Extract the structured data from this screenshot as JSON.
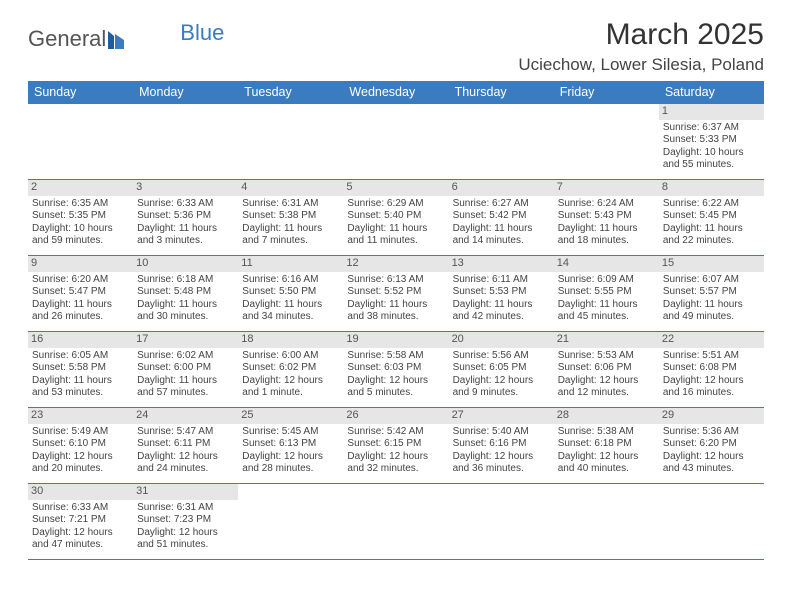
{
  "logo": {
    "text_general": "General",
    "text_blue": "Blue"
  },
  "title": "March 2025",
  "location": "Uciechow, Lower Silesia, Poland",
  "colors": {
    "header_bg": "#3b7bbf",
    "header_text": "#ffffff",
    "daynum_bg": "#e6e6e6",
    "cell_border": "#3b7bbf",
    "body_text": "#444444"
  },
  "weekdays": [
    "Sunday",
    "Monday",
    "Tuesday",
    "Wednesday",
    "Thursday",
    "Friday",
    "Saturday"
  ],
  "weeks": [
    [
      {
        "day": "",
        "sunrise": "",
        "sunset": "",
        "daylight1": "",
        "daylight2": ""
      },
      {
        "day": "",
        "sunrise": "",
        "sunset": "",
        "daylight1": "",
        "daylight2": ""
      },
      {
        "day": "",
        "sunrise": "",
        "sunset": "",
        "daylight1": "",
        "daylight2": ""
      },
      {
        "day": "",
        "sunrise": "",
        "sunset": "",
        "daylight1": "",
        "daylight2": ""
      },
      {
        "day": "",
        "sunrise": "",
        "sunset": "",
        "daylight1": "",
        "daylight2": ""
      },
      {
        "day": "",
        "sunrise": "",
        "sunset": "",
        "daylight1": "",
        "daylight2": ""
      },
      {
        "day": "1",
        "sunrise": "Sunrise: 6:37 AM",
        "sunset": "Sunset: 5:33 PM",
        "daylight1": "Daylight: 10 hours",
        "daylight2": "and 55 minutes."
      }
    ],
    [
      {
        "day": "2",
        "sunrise": "Sunrise: 6:35 AM",
        "sunset": "Sunset: 5:35 PM",
        "daylight1": "Daylight: 10 hours",
        "daylight2": "and 59 minutes."
      },
      {
        "day": "3",
        "sunrise": "Sunrise: 6:33 AM",
        "sunset": "Sunset: 5:36 PM",
        "daylight1": "Daylight: 11 hours",
        "daylight2": "and 3 minutes."
      },
      {
        "day": "4",
        "sunrise": "Sunrise: 6:31 AM",
        "sunset": "Sunset: 5:38 PM",
        "daylight1": "Daylight: 11 hours",
        "daylight2": "and 7 minutes."
      },
      {
        "day": "5",
        "sunrise": "Sunrise: 6:29 AM",
        "sunset": "Sunset: 5:40 PM",
        "daylight1": "Daylight: 11 hours",
        "daylight2": "and 11 minutes."
      },
      {
        "day": "6",
        "sunrise": "Sunrise: 6:27 AM",
        "sunset": "Sunset: 5:42 PM",
        "daylight1": "Daylight: 11 hours",
        "daylight2": "and 14 minutes."
      },
      {
        "day": "7",
        "sunrise": "Sunrise: 6:24 AM",
        "sunset": "Sunset: 5:43 PM",
        "daylight1": "Daylight: 11 hours",
        "daylight2": "and 18 minutes."
      },
      {
        "day": "8",
        "sunrise": "Sunrise: 6:22 AM",
        "sunset": "Sunset: 5:45 PM",
        "daylight1": "Daylight: 11 hours",
        "daylight2": "and 22 minutes."
      }
    ],
    [
      {
        "day": "9",
        "sunrise": "Sunrise: 6:20 AM",
        "sunset": "Sunset: 5:47 PM",
        "daylight1": "Daylight: 11 hours",
        "daylight2": "and 26 minutes."
      },
      {
        "day": "10",
        "sunrise": "Sunrise: 6:18 AM",
        "sunset": "Sunset: 5:48 PM",
        "daylight1": "Daylight: 11 hours",
        "daylight2": "and 30 minutes."
      },
      {
        "day": "11",
        "sunrise": "Sunrise: 6:16 AM",
        "sunset": "Sunset: 5:50 PM",
        "daylight1": "Daylight: 11 hours",
        "daylight2": "and 34 minutes."
      },
      {
        "day": "12",
        "sunrise": "Sunrise: 6:13 AM",
        "sunset": "Sunset: 5:52 PM",
        "daylight1": "Daylight: 11 hours",
        "daylight2": "and 38 minutes."
      },
      {
        "day": "13",
        "sunrise": "Sunrise: 6:11 AM",
        "sunset": "Sunset: 5:53 PM",
        "daylight1": "Daylight: 11 hours",
        "daylight2": "and 42 minutes."
      },
      {
        "day": "14",
        "sunrise": "Sunrise: 6:09 AM",
        "sunset": "Sunset: 5:55 PM",
        "daylight1": "Daylight: 11 hours",
        "daylight2": "and 45 minutes."
      },
      {
        "day": "15",
        "sunrise": "Sunrise: 6:07 AM",
        "sunset": "Sunset: 5:57 PM",
        "daylight1": "Daylight: 11 hours",
        "daylight2": "and 49 minutes."
      }
    ],
    [
      {
        "day": "16",
        "sunrise": "Sunrise: 6:05 AM",
        "sunset": "Sunset: 5:58 PM",
        "daylight1": "Daylight: 11 hours",
        "daylight2": "and 53 minutes."
      },
      {
        "day": "17",
        "sunrise": "Sunrise: 6:02 AM",
        "sunset": "Sunset: 6:00 PM",
        "daylight1": "Daylight: 11 hours",
        "daylight2": "and 57 minutes."
      },
      {
        "day": "18",
        "sunrise": "Sunrise: 6:00 AM",
        "sunset": "Sunset: 6:02 PM",
        "daylight1": "Daylight: 12 hours",
        "daylight2": "and 1 minute."
      },
      {
        "day": "19",
        "sunrise": "Sunrise: 5:58 AM",
        "sunset": "Sunset: 6:03 PM",
        "daylight1": "Daylight: 12 hours",
        "daylight2": "and 5 minutes."
      },
      {
        "day": "20",
        "sunrise": "Sunrise: 5:56 AM",
        "sunset": "Sunset: 6:05 PM",
        "daylight1": "Daylight: 12 hours",
        "daylight2": "and 9 minutes."
      },
      {
        "day": "21",
        "sunrise": "Sunrise: 5:53 AM",
        "sunset": "Sunset: 6:06 PM",
        "daylight1": "Daylight: 12 hours",
        "daylight2": "and 12 minutes."
      },
      {
        "day": "22",
        "sunrise": "Sunrise: 5:51 AM",
        "sunset": "Sunset: 6:08 PM",
        "daylight1": "Daylight: 12 hours",
        "daylight2": "and 16 minutes."
      }
    ],
    [
      {
        "day": "23",
        "sunrise": "Sunrise: 5:49 AM",
        "sunset": "Sunset: 6:10 PM",
        "daylight1": "Daylight: 12 hours",
        "daylight2": "and 20 minutes."
      },
      {
        "day": "24",
        "sunrise": "Sunrise: 5:47 AM",
        "sunset": "Sunset: 6:11 PM",
        "daylight1": "Daylight: 12 hours",
        "daylight2": "and 24 minutes."
      },
      {
        "day": "25",
        "sunrise": "Sunrise: 5:45 AM",
        "sunset": "Sunset: 6:13 PM",
        "daylight1": "Daylight: 12 hours",
        "daylight2": "and 28 minutes."
      },
      {
        "day": "26",
        "sunrise": "Sunrise: 5:42 AM",
        "sunset": "Sunset: 6:15 PM",
        "daylight1": "Daylight: 12 hours",
        "daylight2": "and 32 minutes."
      },
      {
        "day": "27",
        "sunrise": "Sunrise: 5:40 AM",
        "sunset": "Sunset: 6:16 PM",
        "daylight1": "Daylight: 12 hours",
        "daylight2": "and 36 minutes."
      },
      {
        "day": "28",
        "sunrise": "Sunrise: 5:38 AM",
        "sunset": "Sunset: 6:18 PM",
        "daylight1": "Daylight: 12 hours",
        "daylight2": "and 40 minutes."
      },
      {
        "day": "29",
        "sunrise": "Sunrise: 5:36 AM",
        "sunset": "Sunset: 6:20 PM",
        "daylight1": "Daylight: 12 hours",
        "daylight2": "and 43 minutes."
      }
    ],
    [
      {
        "day": "30",
        "sunrise": "Sunrise: 6:33 AM",
        "sunset": "Sunset: 7:21 PM",
        "daylight1": "Daylight: 12 hours",
        "daylight2": "and 47 minutes."
      },
      {
        "day": "31",
        "sunrise": "Sunrise: 6:31 AM",
        "sunset": "Sunset: 7:23 PM",
        "daylight1": "Daylight: 12 hours",
        "daylight2": "and 51 minutes."
      },
      {
        "day": "",
        "sunrise": "",
        "sunset": "",
        "daylight1": "",
        "daylight2": ""
      },
      {
        "day": "",
        "sunrise": "",
        "sunset": "",
        "daylight1": "",
        "daylight2": ""
      },
      {
        "day": "",
        "sunrise": "",
        "sunset": "",
        "daylight1": "",
        "daylight2": ""
      },
      {
        "day": "",
        "sunrise": "",
        "sunset": "",
        "daylight1": "",
        "daylight2": ""
      },
      {
        "day": "",
        "sunrise": "",
        "sunset": "",
        "daylight1": "",
        "daylight2": ""
      }
    ]
  ]
}
